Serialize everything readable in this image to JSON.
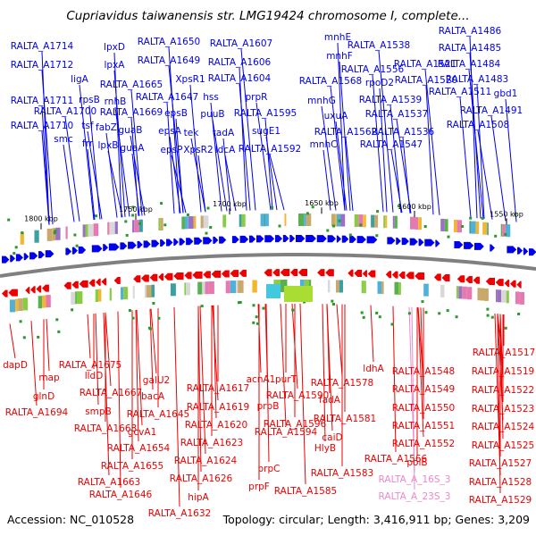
{
  "title": "Cupriavidus taiwanensis str. LMG19424 chromosome I, complete...",
  "accession": "Accession: NC_010528",
  "summary": "Topology: circular; Length: 3,416,911 bp; Genes: 3,209",
  "colors": {
    "forward_strand": "#0000ee",
    "reverse_strand": "#ee0000",
    "rna_genes": "#ee88cc",
    "backbone": "#808080"
  },
  "ticks": [
    "1800 kbp",
    "1750 kbp",
    "1700 kbp",
    "1650 kbp",
    "1600 kbp",
    "1550 kbp"
  ],
  "top_labels": [
    "RALTA_A1714",
    "RALTA_A1712",
    "ligA",
    "RALTA_A1711",
    "rpsB",
    "RALTA_A1700",
    "RALTA_A1710",
    "smc",
    "tsf",
    "frr",
    "fabZ",
    "lpxB",
    "lpxD",
    "lpxA",
    "rnhB",
    "RALTA_A1669",
    "RALTA_A1665",
    "guaB",
    "guaA",
    "RALTA_A1650",
    "RALTA_A1649",
    "RALTA_A1647",
    "epsA",
    "epsP",
    "epsB",
    "XpsR1",
    "tek",
    "XpsR2",
    "hss",
    "puuB",
    "tadA",
    "ldcA",
    "RALTA_A1607",
    "RALTA_A1606",
    "RALTA_A1604",
    "prpR",
    "RALTA_A1595",
    "sugE1",
    "RALTA_A1592",
    "mnhE",
    "mnhF",
    "mnhG",
    "mnhC",
    "uxuA",
    "RALTA_A1568",
    "RALTA_A1562",
    "RALTA_A1556",
    "RALTA_A1538",
    "rpoD2",
    "RALTA_A1539",
    "RALTA_A1537",
    "RALTA_A1536",
    "RALTA_A1547",
    "RALTA_A1521",
    "RALTA_A1520",
    "RALTA_A1511",
    "RALTA_A1508",
    "RALTA_A1486",
    "RALTA_A1485",
    "RALTA_A1484",
    "RALTA_A1483",
    "gbd1",
    "RALTA_A1491"
  ],
  "bottom_labels": [
    "dapD",
    "map",
    "glnD",
    "RALTA_A1694",
    "RALTA_A1675",
    "lldD",
    "RALTA_A1667",
    "smpB",
    "RALTA_A1668",
    "galU2",
    "bacA",
    "RALTA_A1645",
    "gcvA1",
    "RALTA_A1654",
    "RALTA_A1655",
    "RALTA_A1663",
    "RALTA_A1646",
    "RALTA_A1617",
    "RALTA_A1619",
    "RALTA_A1620",
    "RALTA_A1623",
    "RALTA_A1624",
    "RALTA_A1626",
    "hipA",
    "RALTA_A1632",
    "acnA1",
    "purT",
    "RALTA_A1590",
    "prpB",
    "RALTA_A1596",
    "RALTA_A1594",
    "prpC",
    "prpF",
    "RALTA_A1578",
    "fadA",
    "RALTA_A1581",
    "caiD",
    "HlyB",
    "RALTA_A1583",
    "RALTA_A1585",
    "ldhA",
    "RALTA_A1548",
    "RALTA_A1549",
    "RALTA_A1550",
    "RALTA_A1551",
    "RALTA_A1552",
    "RALTA_A1566",
    "polB",
    "RALTA_A_16S_3",
    "RALTA_A_23S_3",
    "RALTA_A1517",
    "RALTA_A1519",
    "RALTA_A1522",
    "RALTA_A1523",
    "RALTA_A1524",
    "RALTA_A1525",
    "RALTA_A1527",
    "RALTA_A1528",
    "RALTA_A1529"
  ]
}
